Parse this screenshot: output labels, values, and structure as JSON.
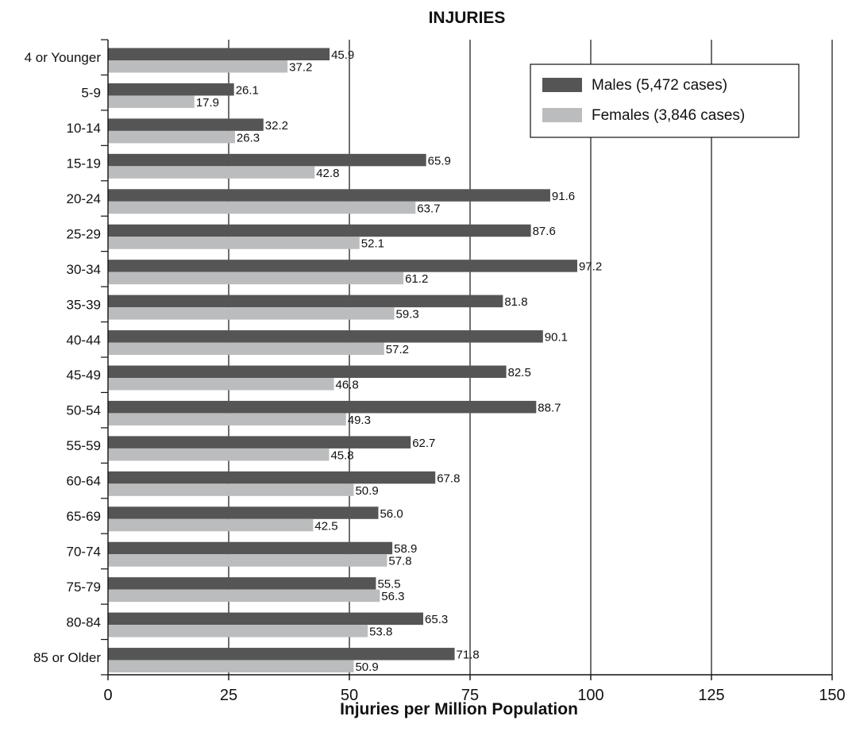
{
  "chart_data": {
    "type": "bar",
    "orientation": "horizontal",
    "title": "INJURIES",
    "xlabel": "Injuries per Million Population",
    "ylabel": "",
    "xlim": [
      0,
      150
    ],
    "xticks": [
      0,
      25,
      50,
      75,
      100,
      125,
      150
    ],
    "grid": "vertical",
    "legend_position": "top-right",
    "categories": [
      "4 or Younger",
      "5-9",
      "10-14",
      "15-19",
      "20-24",
      "25-29",
      "30-34",
      "35-39",
      "40-44",
      "45-49",
      "50-54",
      "55-59",
      "60-64",
      "65-69",
      "70-74",
      "75-79",
      "80-84",
      "85 or Older"
    ],
    "series": [
      {
        "name": "Males (5,472 cases)",
        "color": "#555555",
        "values": [
          45.9,
          26.1,
          32.2,
          65.9,
          91.6,
          87.6,
          97.2,
          81.8,
          90.1,
          82.5,
          88.7,
          62.7,
          67.8,
          56.0,
          58.9,
          55.5,
          65.3,
          71.8
        ],
        "labels": [
          "45.9",
          "26.1",
          "32.2",
          "65.9",
          "91.6",
          "87.6",
          "97.2",
          "81.8",
          "90.1",
          "82.5",
          "88.7",
          "62.7",
          "67.8",
          "56.0",
          "58.9",
          "55.5",
          "65.3",
          "71.8"
        ]
      },
      {
        "name": "Females (3,846 cases)",
        "color": "#bbbcbe",
        "values": [
          37.2,
          17.9,
          26.3,
          42.8,
          63.7,
          52.1,
          61.2,
          59.3,
          57.2,
          46.8,
          49.3,
          45.8,
          50.9,
          42.5,
          57.8,
          56.3,
          53.8,
          50.9
        ],
        "labels": [
          "37.2",
          "17.9",
          "26.3",
          "42.8",
          "63.7",
          "52.1",
          "61.2",
          "59.3",
          "57.2",
          "46.8",
          "49.3",
          "45.8",
          "50.9",
          "42.5",
          "57.8",
          "56.3",
          "53.8",
          "50.9"
        ]
      }
    ]
  }
}
